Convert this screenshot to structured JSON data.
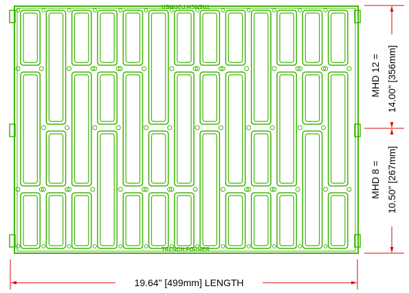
{
  "grate": {
    "top_label": "TRENCH FORMER",
    "bottom_label": "TRENCH FORMER"
  },
  "dimensions": {
    "length": "19.64\" [499mm] LENGTH",
    "mhd12_line1": "MHD 12 =",
    "mhd12_line2": "14.00\" [356mm]",
    "mhd8_line1": "MHD 8 =",
    "mhd8_line2": "10.50\" [267mm]"
  }
}
